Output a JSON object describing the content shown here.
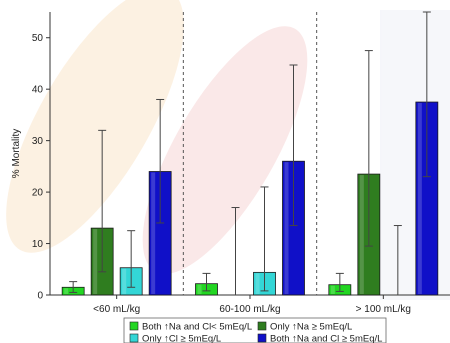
{
  "chart_data": {
    "type": "bar",
    "title": "",
    "xlabel": "",
    "ylabel": "% Mortality",
    "ylim": [
      0,
      55
    ],
    "yticks": [
      0,
      10,
      20,
      30,
      40,
      50
    ],
    "grid": false,
    "legend_position": "bottom",
    "categories": [
      "<60 mL/kg",
      "60-100 mL/kg",
      "> 100 mL/kg"
    ],
    "series": [
      {
        "name": "Both ↑Na and Cl< 5mEq/L",
        "color": "#22d622",
        "values": [
          1.5,
          2.2,
          2.0
        ],
        "ci_low": [
          0.5,
          0.8,
          0.7
        ],
        "ci_high": [
          2.6,
          4.2,
          4.2
        ]
      },
      {
        "name": "Only ↑Na ≥ 5mEq/L",
        "color": "#2f7d1f",
        "values": [
          13.0,
          0,
          23.5
        ],
        "ci_low": [
          4.5,
          0,
          9.5
        ],
        "ci_high": [
          32.0,
          17.0,
          47.5
        ]
      },
      {
        "name": "Only ↑Cl ≥ 5mEq/L",
        "color": "#33d6d6",
        "values": [
          5.3,
          4.4,
          0
        ],
        "ci_low": [
          1.5,
          0.8,
          0
        ],
        "ci_high": [
          12.5,
          21.0,
          13.5
        ]
      },
      {
        "name": "Both ↑Na and Cl ≥ 5mEq/L",
        "color": "#1010c8",
        "values": [
          24.0,
          26.0,
          37.5
        ],
        "ci_low": [
          14.0,
          13.5,
          23.0
        ],
        "ci_high": [
          38.0,
          44.7,
          55.0
        ]
      }
    ]
  }
}
